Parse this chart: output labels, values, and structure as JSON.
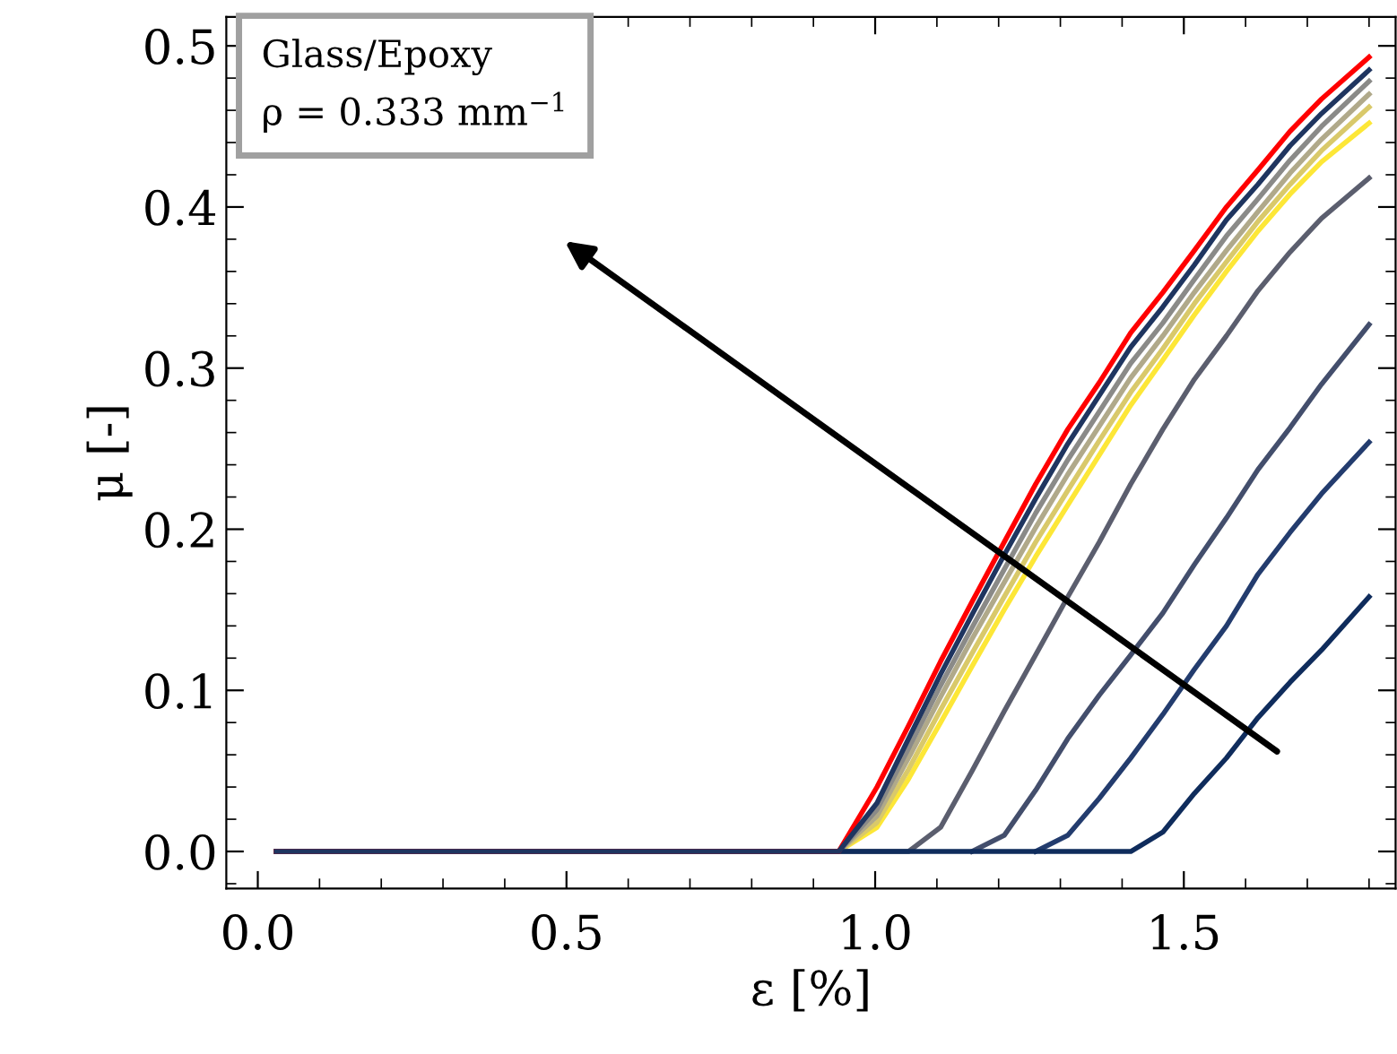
{
  "chart_data": {
    "type": "line",
    "xlabel": "ε [%]",
    "ylabel": "μ [-]",
    "annotations": [
      "Glass/Epoxy\nρ = 0.333 mm$^{−1}$"
    ],
    "x": [
      0.03,
      0.941,
      1.003,
      1.054,
      1.106,
      1.157,
      1.209,
      1.26,
      1.312,
      1.363,
      1.414,
      1.466,
      1.517,
      1.569,
      1.62,
      1.672,
      1.723,
      1.8
    ],
    "series": [
      {
        "color": "#fde737",
        "values": [
          0,
          0,
          0.015,
          0.045,
          0.08,
          0.115,
          0.15,
          0.183,
          0.215,
          0.246,
          0.277,
          0.305,
          0.333,
          0.36,
          0.385,
          0.408,
          0.428,
          0.452
        ]
      },
      {
        "color": "#d9c96a",
        "values": [
          0,
          0,
          0.018,
          0.051,
          0.088,
          0.123,
          0.158,
          0.192,
          0.224,
          0.255,
          0.285,
          0.312,
          0.34,
          0.366,
          0.391,
          0.414,
          0.435,
          0.462
        ]
      },
      {
        "color": "#b0a98a",
        "values": [
          0,
          0,
          0.022,
          0.058,
          0.096,
          0.132,
          0.167,
          0.201,
          0.234,
          0.264,
          0.294,
          0.32,
          0.347,
          0.373,
          0.397,
          0.421,
          0.442,
          0.47
        ]
      },
      {
        "color": "#8a8a88",
        "values": [
          0,
          0,
          0.026,
          0.064,
          0.103,
          0.139,
          0.175,
          0.21,
          0.243,
          0.273,
          0.303,
          0.328,
          0.355,
          0.382,
          0.405,
          0.429,
          0.45,
          0.478
        ]
      },
      {
        "color": "#5b5e6e",
        "values": [
          0,
          0,
          0,
          0,
          0.015,
          0.05,
          0.087,
          0.122,
          0.158,
          0.192,
          0.228,
          0.262,
          0.293,
          0.32,
          0.348,
          0.372,
          0.393,
          0.418
        ]
      },
      {
        "color": "#434e6c",
        "values": [
          null,
          null,
          null,
          null,
          null,
          0,
          0.01,
          0.038,
          0.07,
          0.097,
          0.122,
          0.148,
          0.178,
          0.207,
          0.237,
          0.263,
          0.29,
          0.327
        ]
      },
      {
        "color": "#233c6e",
        "values": [
          null,
          null,
          null,
          null,
          null,
          null,
          null,
          0,
          0.01,
          0.033,
          0.058,
          0.085,
          0.113,
          0.14,
          0.172,
          0.198,
          0.222,
          0.254
        ]
      },
      {
        "color": "#0f2c5c",
        "values": [
          0,
          0,
          0,
          0,
          0,
          0,
          0,
          0,
          0,
          0,
          0,
          0.012,
          0.036,
          0.058,
          0.083,
          0.105,
          0.125,
          0.158
        ]
      },
      {
        "color": "#ff0000",
        "values": [
          0,
          0,
          0.04,
          0.078,
          0.118,
          0.155,
          0.192,
          0.228,
          0.262,
          0.291,
          0.322,
          0.347,
          0.373,
          0.4,
          0.423,
          0.447,
          0.467,
          0.493
        ]
      },
      {
        "color": "#1f3560",
        "values": [
          0,
          0,
          0.03,
          0.07,
          0.11,
          0.147,
          0.184,
          0.219,
          0.253,
          0.283,
          0.313,
          0.338,
          0.364,
          0.392,
          0.414,
          0.438,
          0.458,
          0.485
        ]
      }
    ],
    "xlim": [
      -0.051,
      1.843
    ],
    "xticks": [
      {
        "value": 0,
        "label": "0.0"
      },
      0.5,
      {
        "value": 1,
        "label": "1.0"
      },
      1.5
    ],
    "ylim": [
      -0.023,
      0.518
    ],
    "yticks": [
      {
        "value": 0,
        "label": "0.0"
      },
      0.1,
      0.2,
      0.3,
      0.4,
      0.5
    ],
    "grid": false,
    "legend": false,
    "line_style": "solid",
    "marker": "none"
  }
}
